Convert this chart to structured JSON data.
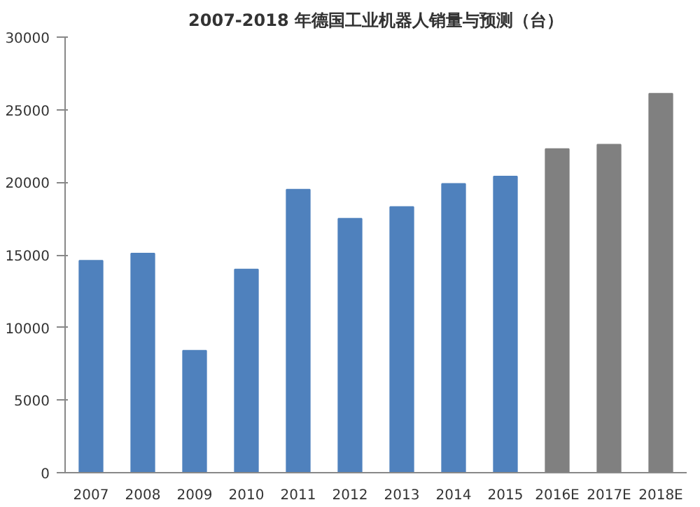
{
  "chart_data": {
    "type": "bar",
    "title": "2007-2018 年德国工业机器人销量与预测（台）",
    "categories": [
      "2007",
      "2008",
      "2009",
      "2010",
      "2011",
      "2012",
      "2013",
      "2014",
      "2015",
      "2016E",
      "2017E",
      "2018E"
    ],
    "values": [
      14600,
      15100,
      8400,
      14000,
      19500,
      17500,
      18300,
      19900,
      20400,
      22300,
      22600,
      26100
    ],
    "colors": [
      "#4f81bd",
      "#4f81bd",
      "#4f81bd",
      "#4f81bd",
      "#4f81bd",
      "#4f81bd",
      "#4f81bd",
      "#4f81bd",
      "#4f81bd",
      "#808080",
      "#808080",
      "#808080"
    ],
    "ylim": [
      0,
      30000
    ],
    "yticks": [
      0,
      5000,
      10000,
      15000,
      20000,
      25000,
      30000
    ],
    "grid": false
  }
}
